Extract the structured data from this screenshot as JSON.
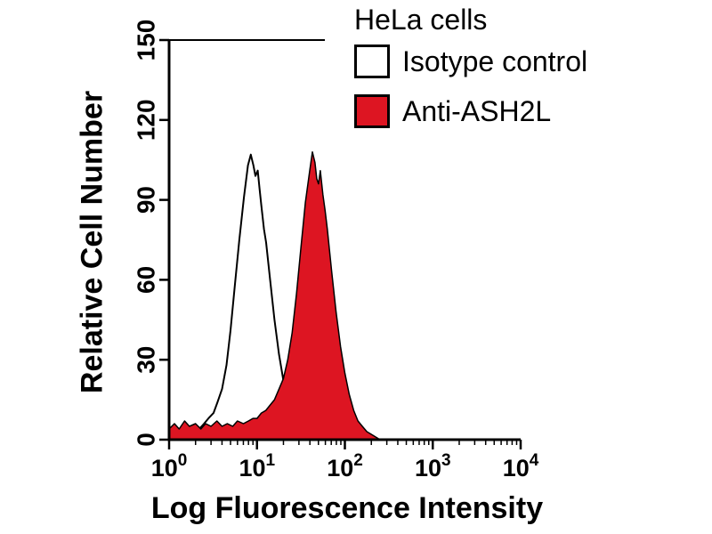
{
  "title": "HeLa cells",
  "legend": {
    "items": [
      {
        "label": "Isotype control",
        "fill": "#ffffff",
        "stroke": "#000000"
      },
      {
        "label": "Anti-ASH2L",
        "fill": "#dd1522",
        "stroke": "#000000"
      }
    ]
  },
  "chart_data": {
    "type": "area",
    "subtype": "flow-cytometry-overlay-histogram",
    "title": "HeLa cells",
    "xlabel": "Log Fluorescence Intensity",
    "ylabel": "Relative Cell Number",
    "x_scale": "log10",
    "xlim": [
      1,
      10000
    ],
    "ylim": [
      0,
      150
    ],
    "x_ticks": [
      1,
      10,
      100,
      1000,
      10000
    ],
    "x_tick_labels": [
      "10^0",
      "10^1",
      "10^2",
      "10^3",
      "10^4"
    ],
    "y_ticks": [
      0,
      30,
      60,
      90,
      120,
      150
    ],
    "grid": false,
    "legend_position": "top-right",
    "series": [
      {
        "name": "Isotype control",
        "fill": "#ffffff",
        "stroke": "#000000",
        "stroke_width": 2,
        "peak": {
          "x": 8.5,
          "y": 107
        },
        "points": [
          [
            1,
            2
          ],
          [
            1.2,
            3
          ],
          [
            1.35,
            2
          ],
          [
            1.55,
            4
          ],
          [
            1.75,
            3
          ],
          [
            2,
            5
          ],
          [
            2.2,
            4
          ],
          [
            2.5,
            6
          ],
          [
            2.8,
            8
          ],
          [
            3.2,
            10
          ],
          [
            3.55,
            14
          ],
          [
            4,
            19
          ],
          [
            4.5,
            28
          ],
          [
            5,
            41
          ],
          [
            5.6,
            58
          ],
          [
            6.3,
            75
          ],
          [
            7.1,
            91
          ],
          [
            7.9,
            103
          ],
          [
            8.5,
            107
          ],
          [
            9.1,
            103
          ],
          [
            9.6,
            99
          ],
          [
            10.2,
            101
          ],
          [
            10.7,
            94
          ],
          [
            11.2,
            88
          ],
          [
            12,
            79
          ],
          [
            12.7,
            74
          ],
          [
            14.1,
            60
          ],
          [
            15.8,
            45
          ],
          [
            17.8,
            32
          ],
          [
            20,
            22
          ],
          [
            22.4,
            15
          ],
          [
            25.1,
            11
          ],
          [
            28.2,
            8
          ],
          [
            31.6,
            7
          ],
          [
            35.5,
            5
          ],
          [
            39.8,
            4
          ],
          [
            50.1,
            3
          ],
          [
            63.1,
            2
          ],
          [
            79.4,
            2
          ],
          [
            100,
            1
          ],
          [
            158,
            1
          ],
          [
            200,
            0
          ]
        ]
      },
      {
        "name": "Anti-ASH2L",
        "fill": "#dd1522",
        "stroke": "#000000",
        "stroke_width": 1.5,
        "peak": {
          "x": 42.7,
          "y": 108
        },
        "points": [
          [
            1,
            4
          ],
          [
            1.15,
            6
          ],
          [
            1.3,
            4
          ],
          [
            1.5,
            7
          ],
          [
            1.7,
            5
          ],
          [
            2,
            6
          ],
          [
            2.3,
            4
          ],
          [
            2.6,
            6
          ],
          [
            3,
            5
          ],
          [
            3.5,
            7
          ],
          [
            4,
            5
          ],
          [
            4.6,
            6
          ],
          [
            5.3,
            5
          ],
          [
            6,
            7
          ],
          [
            7,
            6
          ],
          [
            8,
            7
          ],
          [
            9,
            8
          ],
          [
            10,
            8
          ],
          [
            11.2,
            10
          ],
          [
            12.6,
            11
          ],
          [
            14.1,
            13
          ],
          [
            15.8,
            15
          ],
          [
            17.8,
            19
          ],
          [
            20,
            23
          ],
          [
            22.4,
            30
          ],
          [
            25.1,
            40
          ],
          [
            28.2,
            55
          ],
          [
            31.6,
            72
          ],
          [
            35.5,
            89
          ],
          [
            39.8,
            101
          ],
          [
            42.7,
            108
          ],
          [
            45.7,
            104
          ],
          [
            47.9,
            98
          ],
          [
            50.1,
            96
          ],
          [
            52.5,
            101
          ],
          [
            56.2,
            92
          ],
          [
            59.6,
            86
          ],
          [
            63.1,
            79
          ],
          [
            70.8,
            63
          ],
          [
            79.4,
            48
          ],
          [
            89.1,
            35
          ],
          [
            100,
            25
          ],
          [
            112,
            17
          ],
          [
            126,
            11
          ],
          [
            141,
            7
          ],
          [
            158,
            5
          ],
          [
            178,
            3
          ],
          [
            200,
            2
          ],
          [
            224,
            1
          ],
          [
            251,
            0
          ]
        ]
      }
    ]
  }
}
